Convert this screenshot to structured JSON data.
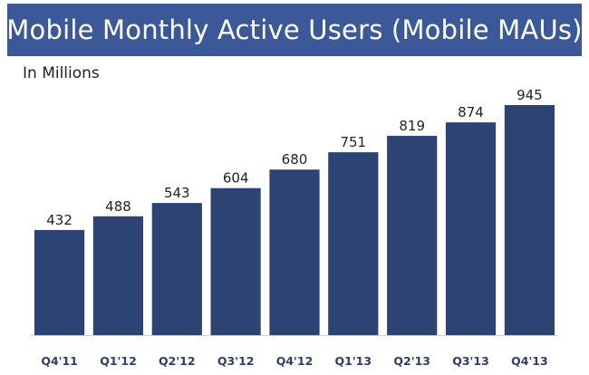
{
  "header": {
    "title": "Mobile Monthly Active Users (Mobile MAUs)",
    "subtitle": "In Millions",
    "bg_color": "#3b5998",
    "text_color": "#ffffff"
  },
  "chart_data": {
    "type": "bar",
    "title": "Mobile Monthly Active Users (Mobile MAUs)",
    "subtitle": "In Millions",
    "categories": [
      "Q4'11",
      "Q1'12",
      "Q2'12",
      "Q3'12",
      "Q4'12",
      "Q1'13",
      "Q2'13",
      "Q3'13",
      "Q4'13"
    ],
    "values": [
      432,
      488,
      543,
      604,
      680,
      751,
      819,
      874,
      945
    ],
    "xlabel": "",
    "ylabel": "",
    "ylim": [
      0,
      945
    ],
    "grid": false,
    "data_labels": true,
    "bar_color": "#2d4373"
  }
}
